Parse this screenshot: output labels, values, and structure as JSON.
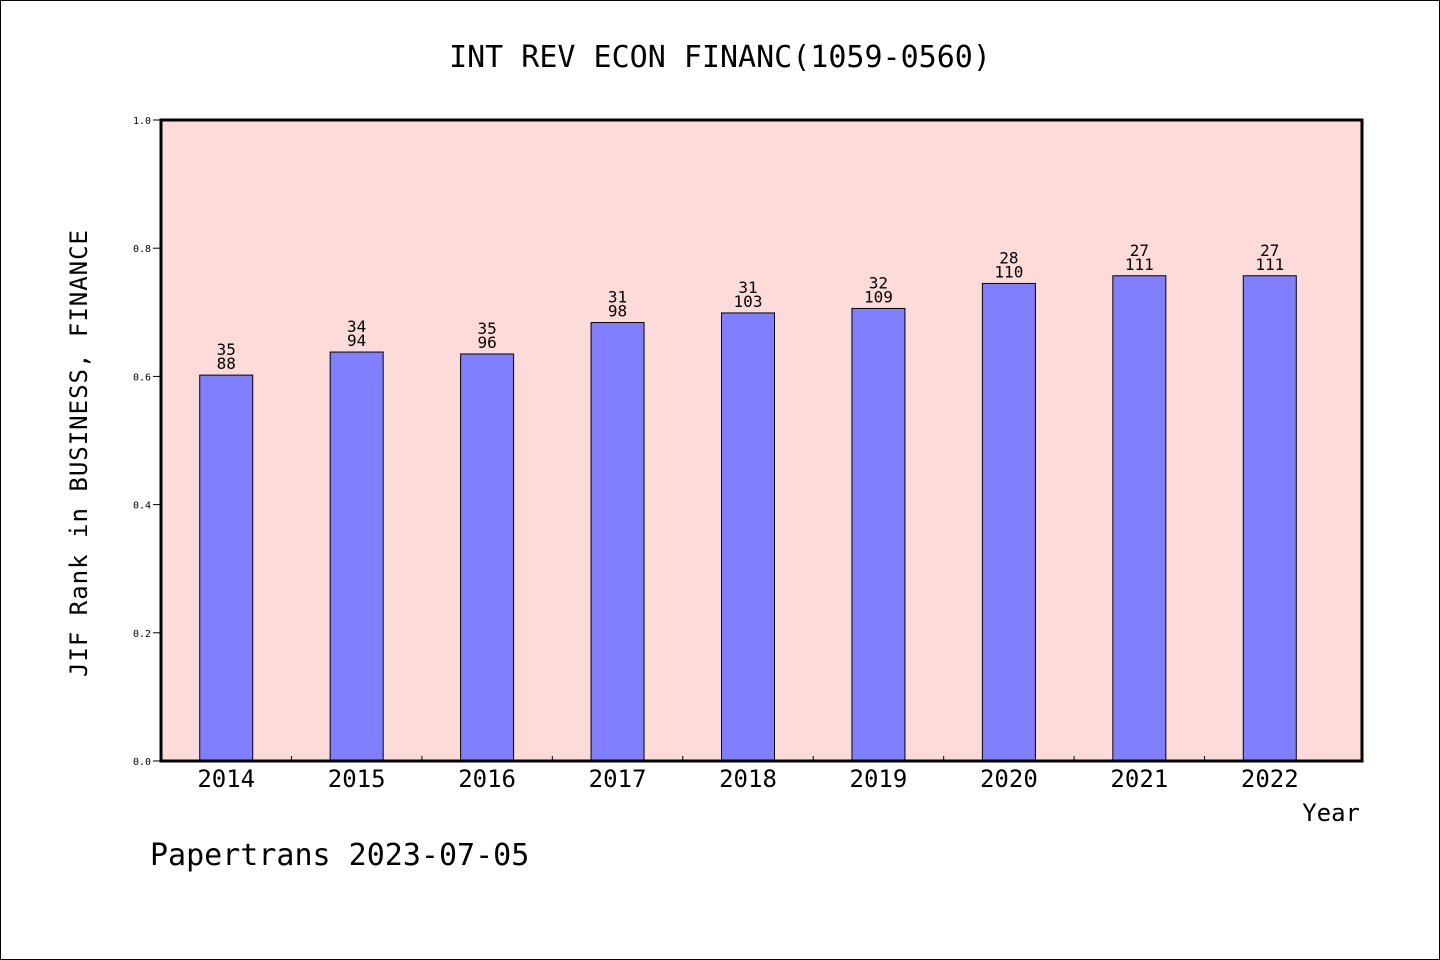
{
  "chart_data": {
    "type": "bar",
    "title": "INT REV ECON FINANC(1059-0560)",
    "xlabel": "Year",
    "ylabel": "JIF Rank in BUSINESS, FINANCE",
    "ylim": [
      0,
      1.0
    ],
    "yticks": [
      "0.0",
      "0.2",
      "0.4",
      "0.6",
      "0.8",
      "1.0"
    ],
    "grid": false,
    "categories": [
      "2014",
      "2015",
      "2016",
      "2017",
      "2018",
      "2019",
      "2020",
      "2021",
      "2022"
    ],
    "values": [
      0.602,
      0.638,
      0.635,
      0.684,
      0.699,
      0.706,
      0.745,
      0.757,
      0.757
    ],
    "rank": [
      "35",
      "34",
      "35",
      "31",
      "31",
      "32",
      "28",
      "27",
      "27"
    ],
    "total": [
      "88",
      "94",
      "96",
      "98",
      "103",
      "109",
      "110",
      "111",
      "111"
    ]
  },
  "colors": {
    "plot_background": "#fddbd8",
    "bar_fill": "#8080ff",
    "bar_stroke": "#000000"
  },
  "footer": {
    "source": "Papertrans 2023-07-05"
  }
}
